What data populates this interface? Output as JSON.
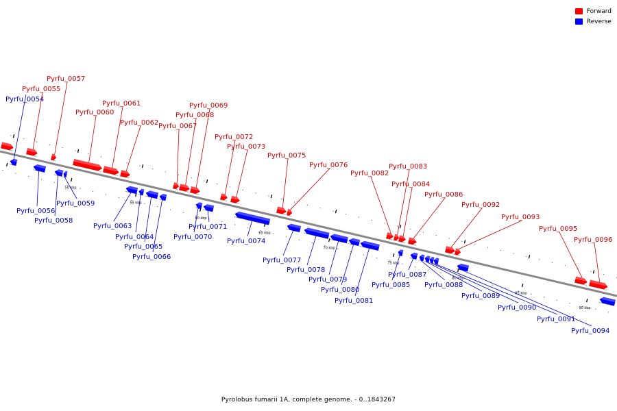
{
  "legend": {
    "forward_label": "Forward",
    "reverse_label": "Reverse",
    "forward_color": "#ff0000",
    "reverse_color": "#0000ff"
  },
  "caption": "Pyrolobus fumarii 1A, complete genome. - 0..1843267",
  "ticks": [
    {
      "label": "50 kbp",
      "tx": 95
    },
    {
      "label": "55 kbp",
      "tx": 190
    },
    {
      "label": "60 kbp",
      "tx": 285
    },
    {
      "label": "65 kbp",
      "tx": 378
    },
    {
      "label": "70 kbp",
      "tx": 472
    },
    {
      "label": "75 kbp",
      "tx": 566
    },
    {
      "label": "80 kbp",
      "tx": 660
    },
    {
      "label": "85 kbp",
      "tx": 752
    },
    {
      "label": "90 kbp",
      "tx": 845
    }
  ],
  "genes": [
    {
      "name": "",
      "strand": "forward",
      "start": 0,
      "end": 18
    },
    {
      "name": "Pyrfu_0054",
      "strand": "reverse",
      "start": 17,
      "end": 27
    },
    {
      "name": "Pyrfu_0055",
      "strand": "forward",
      "start": 37,
      "end": 53
    },
    {
      "name": "Pyrfu_0056",
      "strand": "reverse",
      "start": 51,
      "end": 69
    },
    {
      "name": "Pyrfu_0057",
      "strand": "forward",
      "start": 73,
      "end": 80
    },
    {
      "name": "Pyrfu_0058",
      "strand": "reverse",
      "start": 82,
      "end": 94
    },
    {
      "name": "Pyrfu_0059",
      "strand": "reverse",
      "start": 95,
      "end": 100
    },
    {
      "name": "Pyrfu_0060",
      "strand": "forward",
      "start": 105,
      "end": 148
    },
    {
      "name": "Pyrfu_0061",
      "strand": "forward",
      "start": 149,
      "end": 172
    },
    {
      "name": "Pyrfu_0062",
      "strand": "forward",
      "start": 174,
      "end": 188
    },
    {
      "name": "Pyrfu_0063",
      "strand": "reverse",
      "start": 186,
      "end": 203
    },
    {
      "name": "Pyrfu_0064",
      "strand": "reverse",
      "start": 205,
      "end": 212
    },
    {
      "name": "Pyrfu_0065",
      "strand": "reverse",
      "start": 215,
      "end": 233
    },
    {
      "name": "Pyrfu_0066",
      "strand": "reverse",
      "start": 235,
      "end": 245
    },
    {
      "name": "Pyrfu_0067",
      "strand": "forward",
      "start": 251,
      "end": 259
    },
    {
      "name": "Pyrfu_0068",
      "strand": "forward",
      "start": 260,
      "end": 275
    },
    {
      "name": "Pyrfu_0069",
      "strand": "forward",
      "start": 276,
      "end": 290
    },
    {
      "name": "Pyrfu_0070",
      "strand": "reverse",
      "start": 288,
      "end": 297
    },
    {
      "name": "Pyrfu_0071",
      "strand": "reverse",
      "start": 299,
      "end": 314
    },
    {
      "name": "Pyrfu_0072",
      "strand": "forward",
      "start": 320,
      "end": 330
    },
    {
      "name": "Pyrfu_0073",
      "strand": "forward",
      "start": 335,
      "end": 348
    },
    {
      "name": "Pyrfu_0074",
      "strand": "reverse",
      "start": 345,
      "end": 397
    },
    {
      "name": "Pyrfu_0075",
      "strand": "forward",
      "start": 402,
      "end": 416
    },
    {
      "name": "Pyrfu_0076",
      "strand": "forward",
      "start": 417,
      "end": 424
    },
    {
      "name": "Pyrfu_0077",
      "strand": "reverse",
      "start": 421,
      "end": 441
    },
    {
      "name": "Pyrfu_0078",
      "strand": "reverse",
      "start": 446,
      "end": 483
    },
    {
      "name": "Pyrfu_0079",
      "strand": "reverse",
      "start": 484,
      "end": 510
    },
    {
      "name": "Pyrfu_0080",
      "strand": "reverse",
      "start": 511,
      "end": 527
    },
    {
      "name": "Pyrfu_0081",
      "strand": "reverse",
      "start": 528,
      "end": 556
    },
    {
      "name": "Pyrfu_0082",
      "strand": "forward",
      "start": 562,
      "end": 572
    },
    {
      "name": "Pyrfu_0083",
      "strand": "forward",
      "start": 573,
      "end": 580
    },
    {
      "name": "Pyrfu_0084",
      "strand": "forward",
      "start": 580,
      "end": 590
    },
    {
      "name": "Pyrfu_0085",
      "strand": "reverse",
      "start": 583,
      "end": 590
    },
    {
      "name": "Pyrfu_0086",
      "strand": "forward",
      "start": 594,
      "end": 606
    },
    {
      "name": "Pyrfu_0087",
      "strand": "reverse",
      "start": 601,
      "end": 611
    },
    {
      "name": "Pyrfu_0088",
      "strand": "reverse",
      "start": 614,
      "end": 621
    },
    {
      "name": "Pyrfu_0089",
      "strand": "reverse",
      "start": 622,
      "end": 629
    },
    {
      "name": "Pyrfu_0090",
      "strand": "reverse",
      "start": 629,
      "end": 635
    },
    {
      "name": "Pyrfu_0091",
      "strand": "reverse",
      "start": 635,
      "end": 642
    },
    {
      "name": "Pyrfu_0092",
      "strand": "forward",
      "start": 648,
      "end": 662
    },
    {
      "name": "Pyrfu_0093",
      "strand": "forward",
      "start": 662,
      "end": 670
    },
    {
      "name": "Pyrfu_0094",
      "strand": "reverse",
      "start": 669,
      "end": 686
    },
    {
      "name": "Pyrfu_0095",
      "strand": "forward",
      "start": 837,
      "end": 855
    },
    {
      "name": "Pyrfu_0096",
      "strand": "forward",
      "start": 858,
      "end": 885
    },
    {
      "name": "",
      "strand": "reverse",
      "start": 877,
      "end": 900
    }
  ]
}
